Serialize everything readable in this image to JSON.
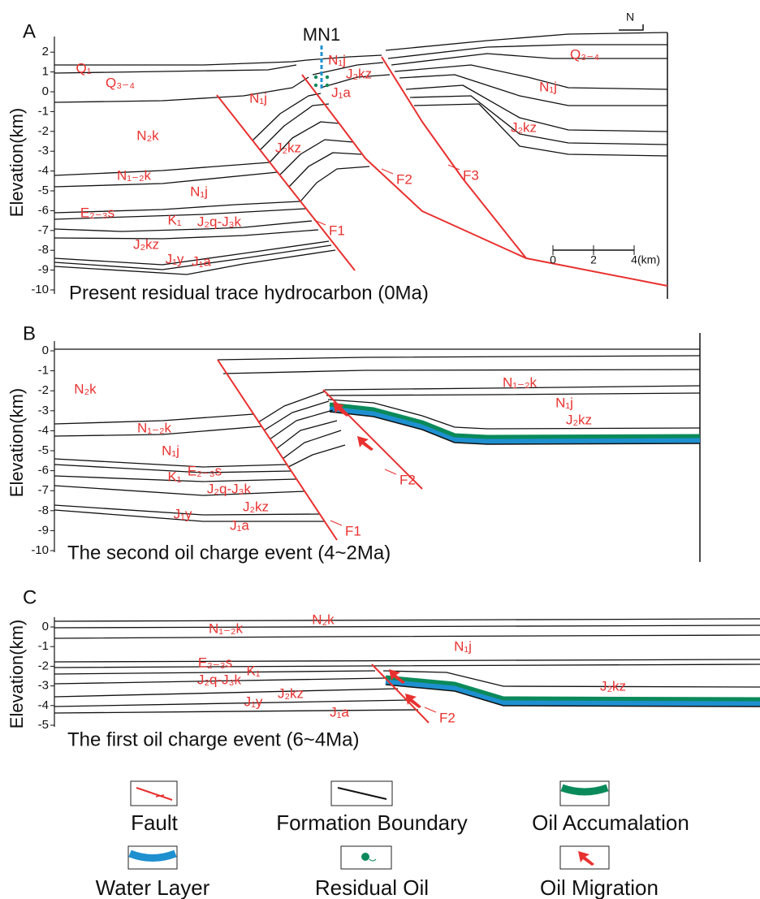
{
  "panels": [
    {
      "label": "A",
      "well": "MN1",
      "north": "N",
      "y_axis_label": "Elevation(km)",
      "yticks": [
        2,
        1,
        0,
        -1,
        -2,
        -3,
        -4,
        -5,
        -6,
        -7,
        -8,
        -9,
        -10
      ],
      "formations": [
        "Q₁",
        "Q₃₋₄",
        "N₁j",
        "N₂k",
        "N₁₋₂k",
        "N₁j",
        "E₂₋₃s",
        "K₁",
        "J₂q-J₃k",
        "J₂kz",
        "J₁y",
        "J₁a",
        "J₂kz",
        "N₁j",
        "J₂kz",
        "J₁a",
        "Q₃₋₄",
        "N₁j",
        "J₂kz"
      ],
      "faults": [
        "F1",
        "F2",
        "F3"
      ],
      "scale_bar": {
        "ticks": [
          0,
          2,
          4
        ],
        "unit": "(km)"
      },
      "caption": "Present residual trace hydrocarbon (0Ma)"
    },
    {
      "label": "B",
      "y_axis_label": "Elevation(km)",
      "yticks": [
        0,
        -1,
        -2,
        -3,
        -4,
        -5,
        -6,
        -7,
        -8,
        -9,
        -10
      ],
      "formations": [
        "N₂k",
        "N₁₋₂k",
        "N₁j",
        "E₂₋₃s",
        "K₁",
        "J₂q-J₃k",
        "J₂kz",
        "J₁y",
        "J₁a",
        "N₁₋₂k",
        "N₁j",
        "J₂kz"
      ],
      "faults": [
        "F1",
        "F2"
      ],
      "caption": "The second oil charge event (4~2Ma)"
    },
    {
      "label": "C",
      "y_axis_label": "Elevation(km)",
      "yticks": [
        0,
        -1,
        -2,
        -3,
        -4,
        -5
      ],
      "formations": [
        "N₁₋₂k",
        "N₂k",
        "N₁j",
        "E₂₋₃s",
        "K₁",
        "J₂q-J₃k",
        "J₂kz",
        "J₁y",
        "J₁a",
        "J₂kz"
      ],
      "faults": [
        "F2"
      ],
      "caption": "The first oil charge event (6~4Ma)"
    }
  ],
  "legend": [
    "Fault",
    "Formation Boundary",
    "Oil Accumalation",
    "Water Layer",
    "Residual Oil",
    "Oil Migration"
  ]
}
